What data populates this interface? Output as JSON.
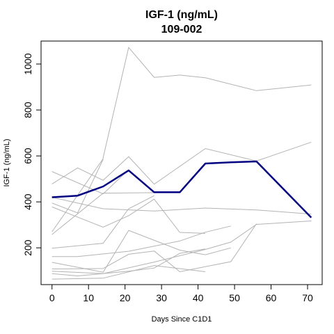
{
  "chart_data": {
    "type": "line",
    "title": "IGF-1 (ng/mL)",
    "subtitle": "109-002",
    "xlabel": "Days Since C1D1",
    "ylabel": "IGF-1 (ng/mL)",
    "xlim": [
      -3,
      74
    ],
    "ylim": [
      40,
      1100
    ],
    "x_ticks": [
      0,
      10,
      20,
      30,
      40,
      50,
      60,
      70
    ],
    "y_ticks": [
      200,
      400,
      600,
      800,
      1000
    ],
    "grid": false,
    "colors": {
      "highlight": "#000080",
      "background_series": "#b3b3b3"
    },
    "highlight_series": {
      "points": [
        [
          0,
          420
        ],
        [
          7,
          427
        ],
        [
          14,
          467
        ],
        [
          21,
          537
        ],
        [
          28,
          442
        ],
        [
          35,
          442
        ],
        [
          42,
          567
        ],
        [
          49,
          572
        ],
        [
          56,
          576
        ],
        [
          71,
          332
        ]
      ]
    },
    "background_series": [
      {
        "points": [
          [
            0,
            270
          ],
          [
            14,
            588
          ],
          [
            14,
            592
          ],
          [
            21,
            1072
          ],
          [
            28,
            942
          ],
          [
            35,
            952
          ],
          [
            42,
            940
          ],
          [
            56,
            884
          ],
          [
            71,
            909
          ]
        ]
      },
      {
        "points": [
          [
            0,
            478
          ],
          [
            7,
            548
          ],
          [
            14,
            494
          ],
          [
            21,
            597
          ],
          [
            28,
            477
          ],
          [
            42,
            632
          ],
          [
            56,
            578
          ],
          [
            71,
            660
          ]
        ]
      },
      {
        "points": [
          [
            0,
            532
          ],
          [
            14,
            435
          ],
          [
            21,
            540
          ]
        ]
      },
      {
        "points": [
          [
            0,
            420
          ],
          [
            14,
            370
          ],
          [
            28,
            360
          ],
          [
            42,
            373
          ],
          [
            56,
            365
          ],
          [
            71,
            347
          ]
        ]
      },
      {
        "points": [
          [
            0,
            378
          ],
          [
            14,
            290
          ],
          [
            21,
            340
          ],
          [
            28,
            412
          ],
          [
            35,
            267
          ],
          [
            42,
            263
          ]
        ]
      },
      {
        "points": [
          [
            0,
            258
          ],
          [
            14,
            438
          ],
          [
            28,
            440
          ]
        ]
      },
      {
        "points": [
          [
            0,
            395
          ],
          [
            7,
            352
          ],
          [
            14,
            585
          ]
        ]
      },
      {
        "points": [
          [
            0,
            198
          ],
          [
            14,
            220
          ],
          [
            21,
            370
          ],
          [
            28,
            427
          ]
        ]
      },
      {
        "points": [
          [
            0,
            162
          ],
          [
            7,
            162
          ],
          [
            21,
            185
          ],
          [
            35,
            230
          ],
          [
            42,
            268
          ],
          [
            49,
            295
          ]
        ]
      },
      {
        "points": [
          [
            0,
            137
          ],
          [
            14,
            94
          ],
          [
            21,
            276
          ],
          [
            35,
            190
          ],
          [
            42,
            170
          ],
          [
            49,
            200
          ]
        ]
      },
      {
        "points": [
          [
            0,
            98
          ],
          [
            14,
            88
          ],
          [
            28,
            138
          ],
          [
            42,
            193
          ],
          [
            49,
            225
          ],
          [
            56,
            302
          ],
          [
            71,
            317
          ]
        ]
      },
      {
        "points": [
          [
            0,
            108
          ],
          [
            14,
            110
          ],
          [
            21,
            172
          ],
          [
            28,
            186
          ],
          [
            35,
            96
          ],
          [
            49,
            140
          ],
          [
            56,
            305
          ]
        ]
      },
      {
        "points": [
          [
            0,
            64
          ],
          [
            14,
            68
          ],
          [
            28,
            123
          ],
          [
            42,
            96
          ]
        ]
      },
      {
        "points": [
          [
            0,
            88
          ],
          [
            7,
            78
          ],
          [
            21,
            98
          ],
          [
            28,
            112
          ],
          [
            35,
            176
          ],
          [
            42,
            195
          ]
        ]
      }
    ]
  }
}
